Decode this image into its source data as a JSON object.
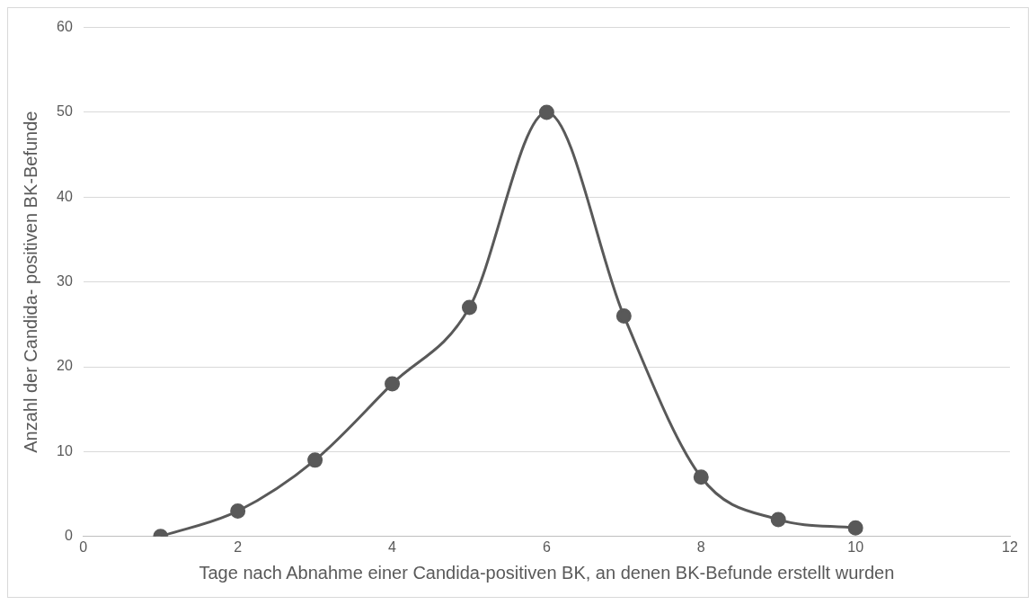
{
  "chart_data": {
    "type": "line",
    "xlabel": "Tage nach Abnahme einer Candida-positiven BK, an denen BK-Befunde erstellt wurden",
    "ylabel": "Anzahl der Candida- positiven BK-Befunde",
    "x": [
      1,
      2,
      3,
      4,
      5,
      6,
      7,
      8,
      9,
      10
    ],
    "series": [
      {
        "color": "#595959",
        "values": [
          0,
          3,
          9,
          18,
          27,
          50,
          26,
          7,
          2,
          1
        ]
      }
    ],
    "xlim": [
      0,
      12
    ],
    "xticks": [
      0,
      2,
      4,
      6,
      8,
      10,
      12
    ],
    "ylim": [
      0,
      60
    ],
    "yticks": [
      0,
      10,
      20,
      30,
      40,
      50,
      60
    ],
    "grid": "y",
    "legend": false,
    "marker": "circle",
    "line_style": "solid"
  }
}
